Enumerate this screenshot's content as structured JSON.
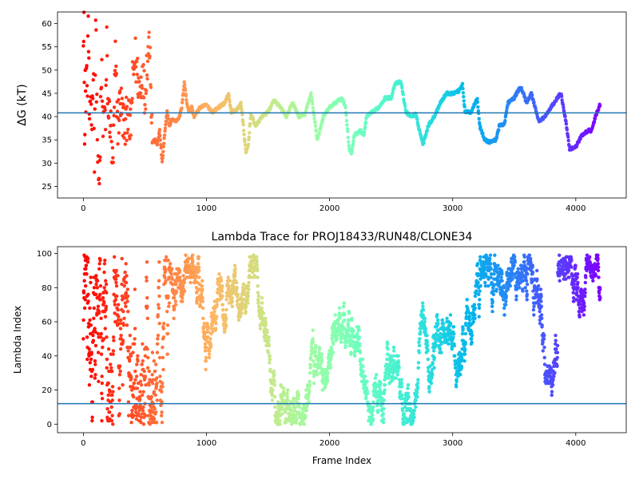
{
  "chart_data": [
    {
      "type": "scatter",
      "title": "",
      "xlabel": "",
      "ylabel": "ΔG (kT)",
      "xlim": [
        -210,
        4410
      ],
      "ylim": [
        22.5,
        62.5
      ],
      "xticks": [
        0,
        1000,
        2000,
        3000,
        4000
      ],
      "yticks": [
        25,
        30,
        35,
        40,
        45,
        50,
        55,
        60
      ],
      "hline": 40.8,
      "hline_color": "#1f77b4",
      "colormap": "rainbow (reversed: red at early frames, violet at late frames)",
      "series": [
        {
          "values_sampled_xy": [
            [
              0,
              60
            ],
            [
              5,
              62
            ],
            [
              10,
              30
            ],
            [
              15,
              50
            ],
            [
              20,
              40
            ],
            [
              25,
              55
            ],
            [
              30,
              42
            ],
            [
              40,
              62
            ],
            [
              45,
              48
            ],
            [
              50,
              35
            ],
            [
              60,
              45
            ],
            [
              70,
              38
            ],
            [
              80,
              52
            ],
            [
              90,
              33
            ],
            [
              100,
              60
            ],
            [
              110,
              42
            ],
            [
              120,
              27
            ],
            [
              130,
              24
            ],
            [
              140,
              40
            ],
            [
              150,
              50
            ],
            [
              160,
              35
            ],
            [
              170,
              45
            ],
            [
              180,
              37
            ],
            [
              190,
              55
            ],
            [
              200,
              42
            ],
            [
              220,
              39
            ],
            [
              240,
              28
            ],
            [
              260,
              52
            ],
            [
              280,
              38
            ],
            [
              300,
              44
            ],
            [
              320,
              40
            ],
            [
              340,
              37
            ],
            [
              360,
              42
            ],
            [
              380,
              36
            ],
            [
              400,
              47
            ],
            [
              420,
              53
            ],
            [
              440,
              49
            ],
            [
              460,
              45
            ],
            [
              480,
              50
            ],
            [
              500,
              44
            ],
            [
              520,
              53
            ],
            [
              540,
              57
            ],
            [
              560,
              34.5
            ],
            [
              580,
              35
            ],
            [
              600,
              34
            ],
            [
              620,
              37
            ],
            [
              640,
              30
            ],
            [
              660,
              36
            ],
            [
              680,
              41
            ],
            [
              700,
              38
            ],
            [
              720,
              39.5
            ],
            [
              750,
              39
            ],
            [
              780,
              40
            ],
            [
              800,
              42
            ],
            [
              820,
              47.5
            ],
            [
              840,
              43
            ],
            [
              860,
              41
            ],
            [
              880,
              42
            ],
            [
              900,
              40
            ],
            [
              950,
              42
            ],
            [
              1000,
              42.5
            ],
            [
              1050,
              41
            ],
            [
              1100,
              42
            ],
            [
              1150,
              43
            ],
            [
              1180,
              45
            ],
            [
              1200,
              41
            ],
            [
              1250,
              41.5
            ],
            [
              1280,
              43
            ],
            [
              1300,
              38
            ],
            [
              1320,
              32
            ],
            [
              1340,
              34
            ],
            [
              1360,
              40.5
            ],
            [
              1400,
              38
            ],
            [
              1450,
              40
            ],
            [
              1500,
              41
            ],
            [
              1550,
              43.5
            ],
            [
              1600,
              42
            ],
            [
              1650,
              40
            ],
            [
              1700,
              43
            ],
            [
              1750,
              40
            ],
            [
              1800,
              40.5
            ],
            [
              1850,
              45
            ],
            [
              1880,
              39
            ],
            [
              1900,
              35
            ],
            [
              1950,
              40
            ],
            [
              2000,
              42
            ],
            [
              2050,
              43
            ],
            [
              2100,
              44
            ],
            [
              2130,
              42
            ],
            [
              2160,
              33
            ],
            [
              2180,
              32
            ],
            [
              2200,
              36
            ],
            [
              2250,
              37
            ],
            [
              2280,
              36
            ],
            [
              2300,
              40
            ],
            [
              2350,
              41
            ],
            [
              2400,
              42
            ],
            [
              2450,
              44
            ],
            [
              2500,
              44
            ],
            [
              2530,
              47
            ],
            [
              2580,
              47.5
            ],
            [
              2620,
              41
            ],
            [
              2660,
              40
            ],
            [
              2700,
              40.5
            ],
            [
              2740,
              36
            ],
            [
              2760,
              34
            ],
            [
              2800,
              38
            ],
            [
              2850,
              40
            ],
            [
              2900,
              43
            ],
            [
              2950,
              45
            ],
            [
              3000,
              45
            ],
            [
              3050,
              45.5
            ],
            [
              3080,
              47
            ],
            [
              3100,
              41
            ],
            [
              3150,
              41
            ],
            [
              3200,
              44
            ],
            [
              3220,
              38
            ],
            [
              3260,
              35
            ],
            [
              3300,
              34.5
            ],
            [
              3350,
              35
            ],
            [
              3380,
              38
            ],
            [
              3420,
              38.5
            ],
            [
              3450,
              43
            ],
            [
              3500,
              44
            ],
            [
              3540,
              46
            ],
            [
              3560,
              46
            ],
            [
              3600,
              43
            ],
            [
              3640,
              45
            ],
            [
              3680,
              41
            ],
            [
              3700,
              39
            ],
            [
              3750,
              40
            ],
            [
              3800,
              42
            ],
            [
              3850,
              44
            ],
            [
              3880,
              45
            ],
            [
              3900,
              42
            ],
            [
              3920,
              39
            ],
            [
              3950,
              33
            ],
            [
              4000,
              33.5
            ],
            [
              4050,
              36
            ],
            [
              4100,
              37
            ],
            [
              4130,
              37
            ],
            [
              4160,
              40
            ],
            [
              4200,
              42.8
            ]
          ]
        }
      ]
    },
    {
      "type": "scatter",
      "title": "Lambda Trace for PROJ18433/RUN48/CLONE34",
      "xlabel": "Frame Index",
      "ylabel": "Lambda Index",
      "xlim": [
        -210,
        4410
      ],
      "ylim": [
        -5,
        104
      ],
      "xticks": [
        0,
        1000,
        2000,
        3000,
        4000
      ],
      "yticks": [
        0,
        20,
        40,
        60,
        80,
        100
      ],
      "hline": 12,
      "hline_color": "#1f77b4",
      "colormap": "rainbow (reversed: red at early frames, violet at late frames)",
      "series": [
        {
          "frame_range": [
            0,
            4200
          ],
          "lambda_range": [
            0,
            99
          ],
          "distribution": "dense random walk across full lambda range; clusters near 90–99 around frames 3850–3950 and 3200–3300"
        }
      ]
    }
  ]
}
